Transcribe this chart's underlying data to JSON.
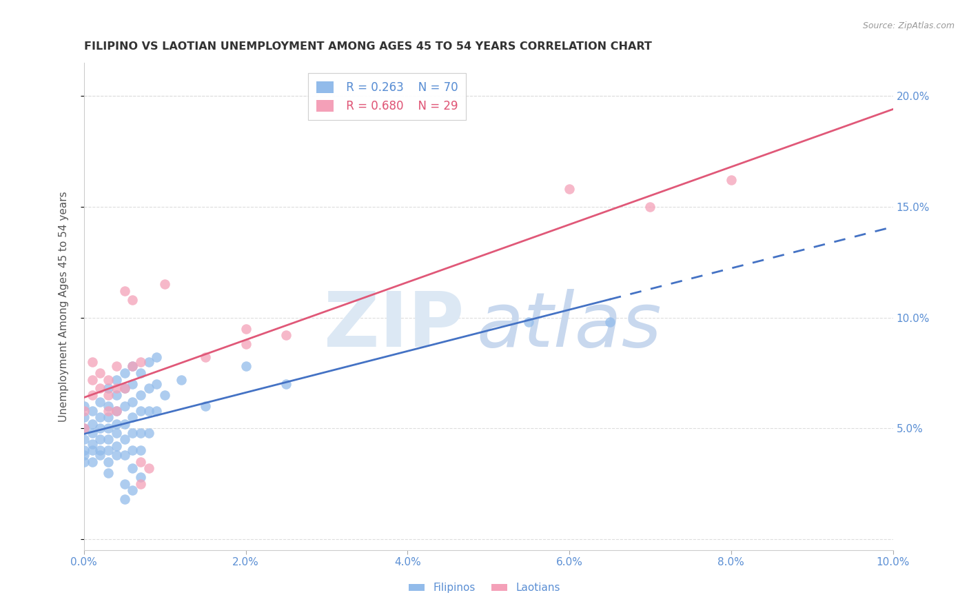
{
  "title": "FILIPINO VS LAOTIAN UNEMPLOYMENT AMONG AGES 45 TO 54 YEARS CORRELATION CHART",
  "source": "Source: ZipAtlas.com",
  "ylabel": "Unemployment Among Ages 45 to 54 years",
  "xlim": [
    0.0,
    0.1
  ],
  "ylim": [
    -0.005,
    0.215
  ],
  "xticks": [
    0.0,
    0.02,
    0.04,
    0.06,
    0.08,
    0.1
  ],
  "yticks": [
    0.0,
    0.05,
    0.1,
    0.15,
    0.2
  ],
  "filipino_color": "#92BBEA",
  "laotian_color": "#F4A0B8",
  "filipino_R": 0.263,
  "filipino_N": 70,
  "laotian_R": 0.68,
  "laotian_N": 29,
  "background_color": "#ffffff",
  "axis_color": "#5B8FD4",
  "grid_color": "#dddddd",
  "filipino_line_color": "#4472C4",
  "laotian_line_color": "#E05878",
  "filipino_scatter": [
    [
      0.0,
      0.06
    ],
    [
      0.0,
      0.055
    ],
    [
      0.0,
      0.05
    ],
    [
      0.0,
      0.045
    ],
    [
      0.0,
      0.04
    ],
    [
      0.0,
      0.038
    ],
    [
      0.0,
      0.035
    ],
    [
      0.001,
      0.058
    ],
    [
      0.001,
      0.052
    ],
    [
      0.001,
      0.048
    ],
    [
      0.001,
      0.043
    ],
    [
      0.001,
      0.04
    ],
    [
      0.001,
      0.035
    ],
    [
      0.002,
      0.062
    ],
    [
      0.002,
      0.055
    ],
    [
      0.002,
      0.05
    ],
    [
      0.002,
      0.045
    ],
    [
      0.002,
      0.04
    ],
    [
      0.002,
      0.038
    ],
    [
      0.003,
      0.068
    ],
    [
      0.003,
      0.06
    ],
    [
      0.003,
      0.055
    ],
    [
      0.003,
      0.05
    ],
    [
      0.003,
      0.045
    ],
    [
      0.003,
      0.04
    ],
    [
      0.003,
      0.035
    ],
    [
      0.003,
      0.03
    ],
    [
      0.004,
      0.072
    ],
    [
      0.004,
      0.065
    ],
    [
      0.004,
      0.058
    ],
    [
      0.004,
      0.052
    ],
    [
      0.004,
      0.048
    ],
    [
      0.004,
      0.042
    ],
    [
      0.004,
      0.038
    ],
    [
      0.005,
      0.075
    ],
    [
      0.005,
      0.068
    ],
    [
      0.005,
      0.06
    ],
    [
      0.005,
      0.052
    ],
    [
      0.005,
      0.045
    ],
    [
      0.005,
      0.038
    ],
    [
      0.005,
      0.025
    ],
    [
      0.005,
      0.018
    ],
    [
      0.006,
      0.078
    ],
    [
      0.006,
      0.07
    ],
    [
      0.006,
      0.062
    ],
    [
      0.006,
      0.055
    ],
    [
      0.006,
      0.048
    ],
    [
      0.006,
      0.04
    ],
    [
      0.006,
      0.032
    ],
    [
      0.006,
      0.022
    ],
    [
      0.007,
      0.075
    ],
    [
      0.007,
      0.065
    ],
    [
      0.007,
      0.058
    ],
    [
      0.007,
      0.048
    ],
    [
      0.007,
      0.04
    ],
    [
      0.007,
      0.028
    ],
    [
      0.008,
      0.08
    ],
    [
      0.008,
      0.068
    ],
    [
      0.008,
      0.058
    ],
    [
      0.008,
      0.048
    ],
    [
      0.009,
      0.082
    ],
    [
      0.009,
      0.07
    ],
    [
      0.009,
      0.058
    ],
    [
      0.01,
      0.065
    ],
    [
      0.012,
      0.072
    ],
    [
      0.015,
      0.06
    ],
    [
      0.02,
      0.078
    ],
    [
      0.025,
      0.07
    ],
    [
      0.055,
      0.098
    ],
    [
      0.065,
      0.098
    ]
  ],
  "laotian_scatter": [
    [
      0.0,
      0.058
    ],
    [
      0.0,
      0.05
    ],
    [
      0.001,
      0.08
    ],
    [
      0.001,
      0.072
    ],
    [
      0.001,
      0.065
    ],
    [
      0.002,
      0.075
    ],
    [
      0.002,
      0.068
    ],
    [
      0.003,
      0.072
    ],
    [
      0.003,
      0.065
    ],
    [
      0.003,
      0.058
    ],
    [
      0.004,
      0.078
    ],
    [
      0.004,
      0.068
    ],
    [
      0.004,
      0.058
    ],
    [
      0.005,
      0.112
    ],
    [
      0.005,
      0.068
    ],
    [
      0.006,
      0.108
    ],
    [
      0.006,
      0.078
    ],
    [
      0.007,
      0.08
    ],
    [
      0.007,
      0.035
    ],
    [
      0.007,
      0.025
    ],
    [
      0.008,
      0.032
    ],
    [
      0.01,
      0.115
    ],
    [
      0.015,
      0.082
    ],
    [
      0.02,
      0.095
    ],
    [
      0.02,
      0.088
    ],
    [
      0.025,
      0.092
    ],
    [
      0.06,
      0.158
    ],
    [
      0.07,
      0.15
    ],
    [
      0.08,
      0.162
    ]
  ],
  "zip_text_color": "#d8e4f0",
  "atlas_text_color": "#c8d8ec"
}
